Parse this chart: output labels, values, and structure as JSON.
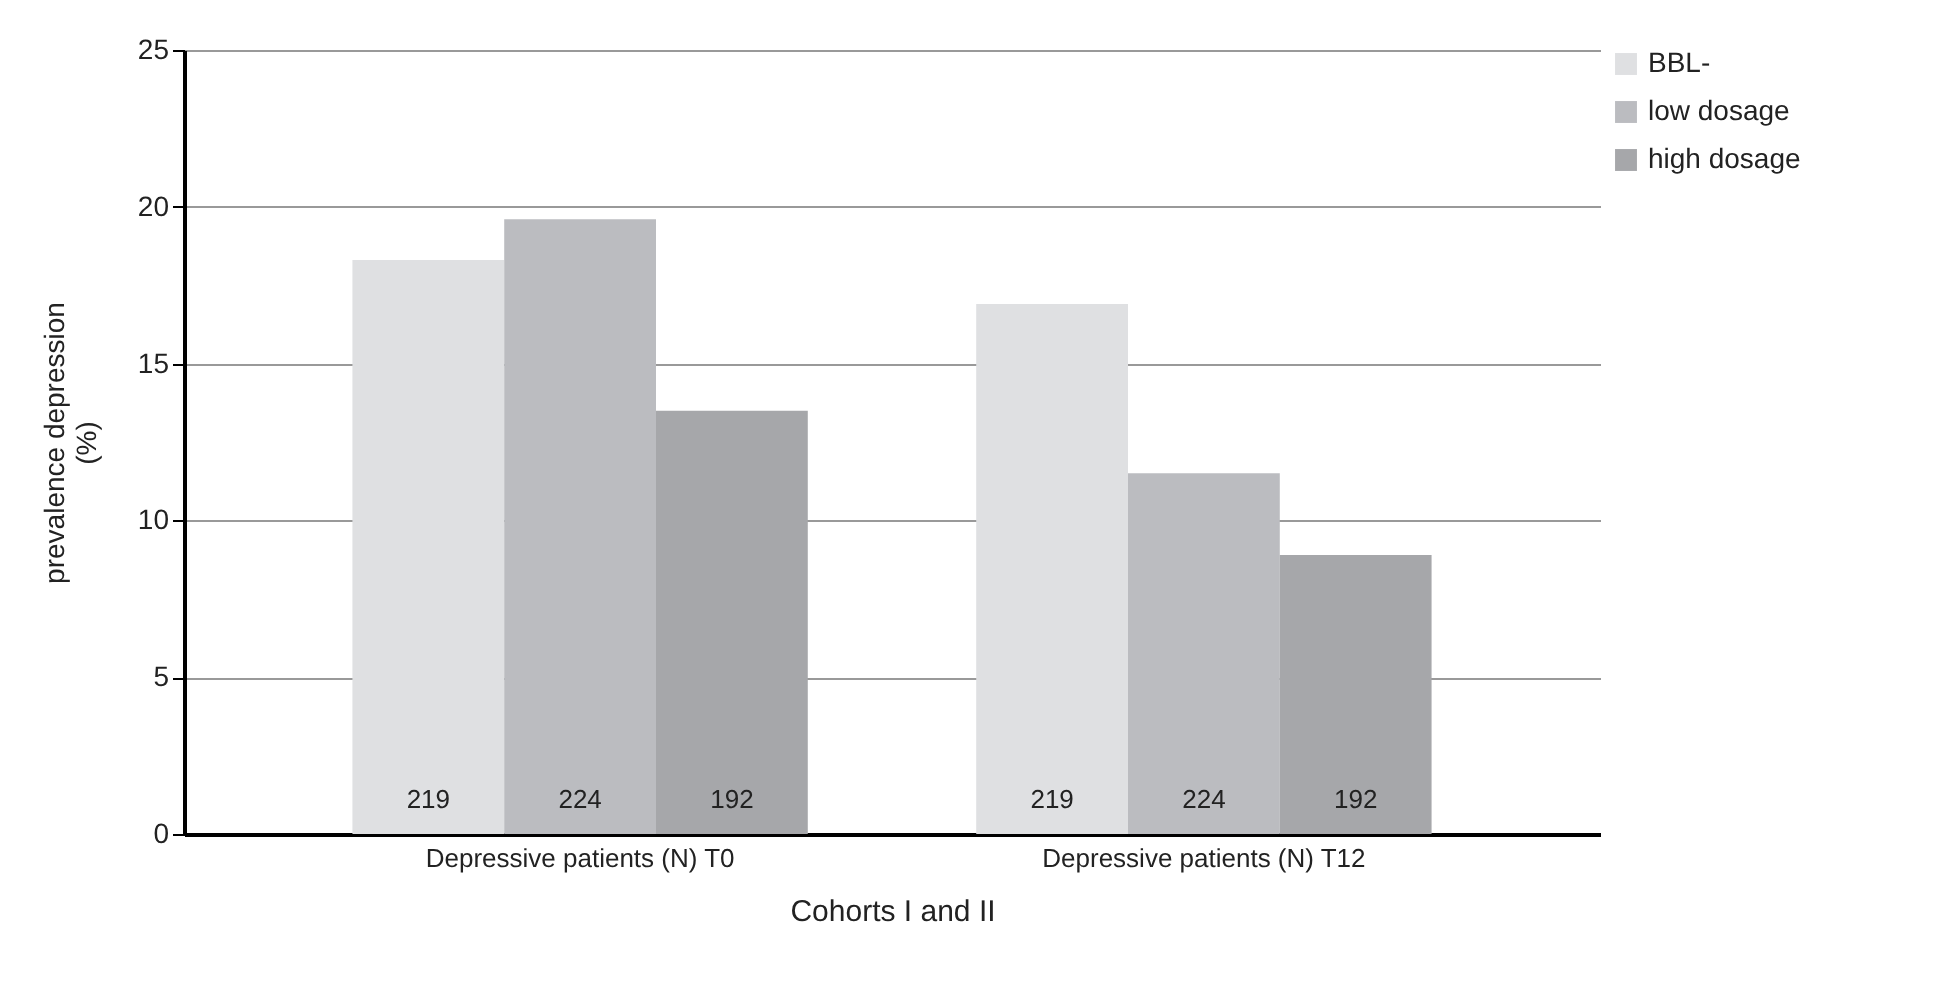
{
  "chart_data": {
    "type": "bar",
    "xlabel": "Cohorts I and II",
    "ylabel": "prevalence depression\n(%)",
    "categories": [
      "Depressive patients (N) T0",
      "Depressive patients (N) T12"
    ],
    "series": [
      {
        "name": "BBL-",
        "color": "#dfe0e2",
        "values": [
          18.3,
          16.9
        ]
      },
      {
        "name": "low dosage",
        "color": "#bbbcc0",
        "values": [
          19.6,
          11.5
        ]
      },
      {
        "name": "high dosage",
        "color": "#a6a7aa",
        "values": [
          13.5,
          8.9
        ]
      }
    ],
    "annotations": [
      "219",
      "224",
      "192",
      "219",
      "224",
      "192"
    ],
    "ylim": [
      0,
      25
    ],
    "yticks": [
      0,
      5,
      10,
      15,
      20,
      25
    ],
    "grid": "y",
    "legend": "right"
  }
}
